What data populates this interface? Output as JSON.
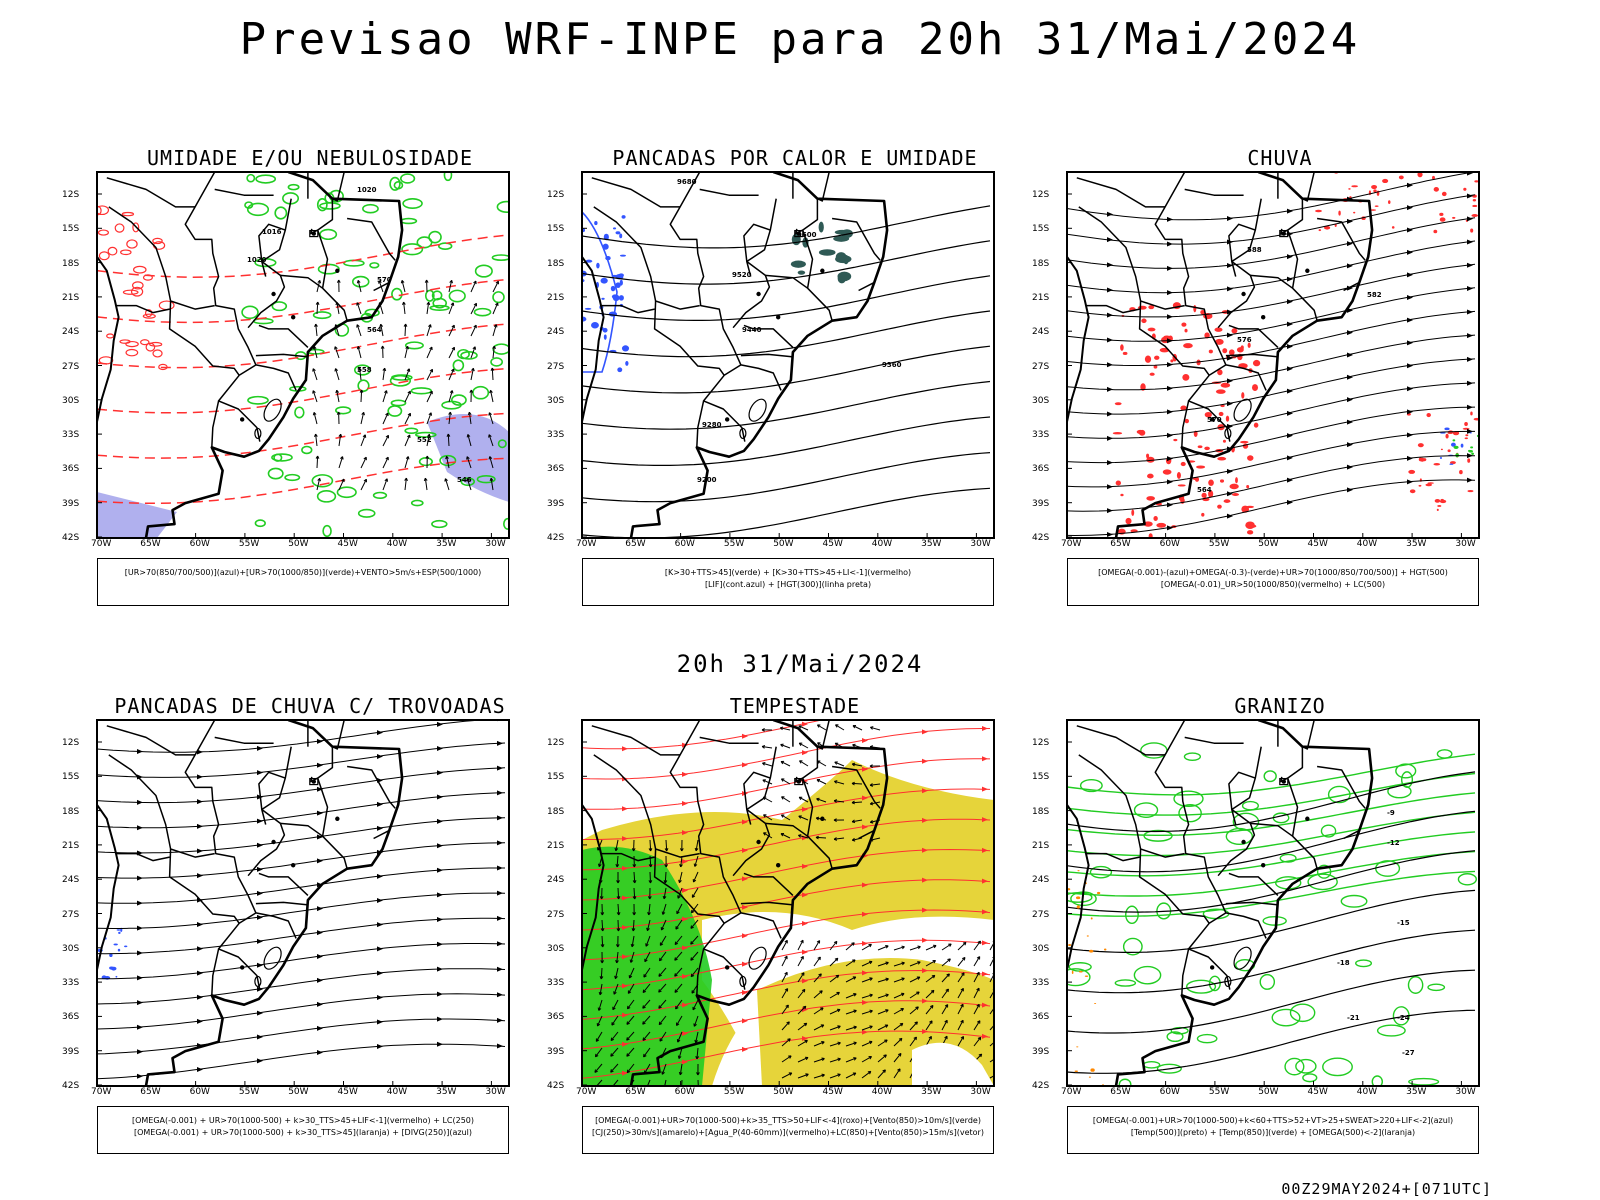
{
  "header": {
    "title": "Previsao WRF-INPE  para 20h 31/Mai/2024"
  },
  "subtitle": "20h 31/Mai/2024",
  "footer": "00Z29MAY2024+[071UTC]",
  "axes": {
    "lat_labels": [
      "12S",
      "15S",
      "18S",
      "21S",
      "24S",
      "27S",
      "30S",
      "33S",
      "36S",
      "39S",
      "42S"
    ],
    "lon_labels": [
      "70W",
      "65W",
      "60W",
      "55W",
      "50W",
      "45W",
      "40W",
      "35W",
      "30W"
    ]
  },
  "panels": [
    {
      "title": "UMIDADE E/OU NEBULOSIDADE",
      "legend": [
        "[UR>70(850/700/500)](azul)+[UR>70(1000/850)](verde)+VENTO>5m/s+ESP(500/1000)"
      ],
      "contour_labels": [
        "1020",
        "1016",
        "1020",
        "570",
        "564",
        "558",
        "552",
        "546"
      ]
    },
    {
      "title": "PANCADAS POR CALOR E UMIDADE",
      "legend": [
        "[K>30+TTS>45](verde) + [K>30+TTS>45+LI<-1](vermelho)",
        "[LIF](cont.azul) + [HGT(300)](linha preta)"
      ],
      "contour_labels": [
        "9680",
        "9600",
        "9520",
        "9440",
        "9360",
        "9280",
        "9200"
      ]
    },
    {
      "title": "CHUVA",
      "legend": [
        "[OMEGA(-0.001)-(azul)+OMEGA(-0.3)-(verde)+UR>70(1000/850/700/500)] + HGT(500)",
        "[OMEGA(-0.01)_UR>50(1000/850)(vermelho) + LC(500)"
      ],
      "contour_labels": [
        "588",
        "582",
        "576",
        "570",
        "564"
      ]
    },
    {
      "title": "PANCADAS DE CHUVA C/ TROVOADAS",
      "legend": [
        "[OMEGA(-0.001) + UR>70(1000-500) + k>30_TTS>45+LIF<-1](vermelho) + LC(250)",
        "[OMEGA(-0.001) + UR>70(1000-500) + k>30_TTS>45](laranja) + [DIVG(250)](azul)"
      ],
      "contour_labels": []
    },
    {
      "title": "TEMPESTADE",
      "legend": [
        "[OMEGA(-0.001)+UR>70(1000-500)+k>35_TTS>50+LIF<-4](roxo)+[Vento(850)>10m/s](verde)",
        "[CJ(250)>30m/s](amarelo)+[Agua_P(40-60mm)](vermelho)+LC(850)+[Vento(850)>15m/s](vetor)"
      ],
      "contour_labels": []
    },
    {
      "title": "GRANIZO",
      "legend": [
        "[OMEGA(-0.001)+UR>70(1000-500)+k<60+TTS>52+VT>25+SWEAT>220+LIF<-2](azul)",
        "[Temp(500)](preto) + [Temp(850)](verde) + [OMEGA(500)<-2](laranja)"
      ],
      "contour_labels": [
        "-9",
        "-12",
        "-15",
        "-18",
        "-21",
        "-24",
        "-27"
      ]
    }
  ],
  "colors": {
    "red": "#ff3030",
    "green": "#22cc22",
    "blue": "#3355ff",
    "yellow": "#e6d43a",
    "lavender": "#b0b0ee",
    "darkgreen": "#2f5a55",
    "orange": "#ff8800"
  }
}
